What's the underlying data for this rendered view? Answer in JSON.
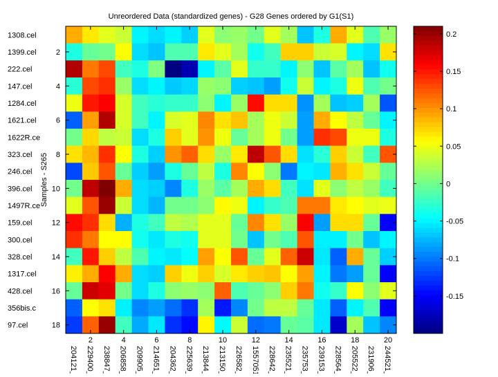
{
  "chart_data": {
    "type": "heatmap",
    "title": "Unreordered Data (standardized genes) - G28 Genes ordered by G1(S1)",
    "ylabel": "Samples - S265",
    "xlabel": "",
    "colormap": "jet",
    "clim": [
      -0.2,
      0.21
    ],
    "colorbar_ticks": [
      0.2,
      0.15,
      0.1,
      0.05,
      0,
      -0.05,
      -0.1,
      -0.15
    ],
    "colorbar_tick_labels": [
      "0.2",
      "0.15",
      "0.1",
      "0.05",
      "0",
      "-0.05",
      "-0.1",
      "-0.15"
    ],
    "x_ticks": [
      2,
      4,
      6,
      8,
      10,
      12,
      14,
      16,
      18,
      20
    ],
    "x_tick_labels": [
      "2",
      "4",
      "6",
      "8",
      "10",
      "12",
      "14",
      "16",
      "18",
      "20"
    ],
    "y_ticks": [
      2,
      4,
      6,
      8,
      10,
      12,
      14,
      16,
      18
    ],
    "y_tick_labels": [
      "2",
      "4",
      "6",
      "8",
      "10",
      "12",
      "14",
      "16",
      "18"
    ],
    "columns": [
      "204121_",
      "229400_",
      "238847_",
      "206858_",
      "209905_",
      "214651_",
      "204362_",
      "225639_",
      "213844_",
      "213150_",
      "226582_",
      "1557051",
      "228642_",
      "235521_",
      "235753_",
      "239153_",
      "228564_",
      "205522_",
      "231906_",
      "244521_"
    ],
    "rows": [
      "1308.cel",
      "1399.cel",
      "222.cel",
      "147.cel",
      "1284.cel",
      "1621.cel",
      "1622R.ce",
      "323.cel",
      "246.cel",
      "396.cel",
      "1497R.ce",
      "159.cel",
      "300.cel",
      "328.cel",
      "1317.cel",
      "428.cel",
      "356bis.c",
      "97.cel"
    ],
    "values": [
      [
        0.09,
        0.065,
        0.045,
        0.035,
        -0.05,
        -0.06,
        -0.05,
        -0.065,
        0.045,
        0.01,
        0.015,
        0.0,
        0.045,
        0.02,
        -0.07,
        -0.035,
        0.09,
        0.045,
        -0.015,
        0.015
      ],
      [
        -0.035,
        -0.005,
        0.0,
        0.056,
        -0.06,
        -0.07,
        -0.015,
        -0.015,
        0.065,
        0.045,
        0.02,
        -0.04,
        -0.02,
        0.075,
        0.075,
        0.035,
        0.04,
        -0.05,
        -0.06,
        0.068
      ],
      [
        0.19,
        0.11,
        0.13,
        -0.02,
        -0.035,
        0.005,
        -0.2,
        -0.18,
        -0.05,
        -0.01,
        0.045,
        -0.025,
        -0.025,
        -0.05,
        0.01,
        -0.07,
        -0.01,
        0.02,
        -0.07,
        -0.04
      ],
      [
        -0.03,
        0.13,
        0.14,
        0.015,
        -0.06,
        -0.05,
        -0.068,
        -0.062,
        0.015,
        0.01,
        -0.065,
        -0.07,
        -0.085,
        -0.04,
        0.035,
        -0.05,
        -0.035,
        0.05,
        -0.015,
        0.0
      ],
      [
        0.05,
        0.15,
        0.16,
        0.04,
        -0.02,
        -0.03,
        -0.025,
        -0.025,
        0.01,
        -0.05,
        0.015,
        0.155,
        0.07,
        0.07,
        -0.09,
        0.02,
        -0.07,
        -0.065,
        0.02,
        -0.115
      ],
      [
        -0.11,
        0.095,
        0.19,
        0.04,
        -0.02,
        -0.05,
        0.04,
        0.045,
        0.105,
        0.068,
        0.08,
        0.02,
        0.05,
        0.035,
        -0.085,
        0.09,
        0.056,
        0.03,
        -0.005,
        -0.05
      ],
      [
        0.0,
        0.072,
        0.03,
        0.035,
        -0.06,
        -0.035,
        0.075,
        0.045,
        0.1,
        0.05,
        -0.005,
        0.02,
        0.05,
        0.0,
        -0.085,
        0.14,
        0.13,
        0.05,
        0.05,
        -0.035
      ],
      [
        0.068,
        0.085,
        0.14,
        0.056,
        -0.035,
        -0.065,
        0.1,
        0.12,
        0.07,
        0.015,
        0.065,
        0.185,
        0.125,
        0.07,
        -0.058,
        -0.03,
        0.075,
        0.035,
        -0.02,
        0.125
      ],
      [
        -0.12,
        0.078,
        0.125,
        -0.005,
        -0.065,
        -0.085,
        -0.035,
        -0.005,
        0.03,
        -0.035,
        0.105,
        0.056,
        0.01,
        -0.1,
        -0.05,
        -0.055,
        0.088,
        0.068,
        0.035,
        -0.005
      ],
      [
        0.0,
        0.185,
        0.21,
        0.09,
        -0.06,
        -0.065,
        -0.095,
        -0.035,
        0.015,
        -0.01,
        0.02,
        0.09,
        0.07,
        -0.02,
        -0.058,
        0.045,
        0.01,
        0.03,
        0.015,
        -0.02
      ],
      [
        0.045,
        0.125,
        0.2,
        0.035,
        -0.06,
        -0.075,
        0.0,
        0.0,
        0.01,
        0.058,
        0.05,
        -0.05,
        -0.025,
        -0.015,
        0.11,
        0.11,
        0.065,
        0.056,
        0.045,
        0.048
      ],
      [
        0.155,
        0.14,
        0.07,
        -0.078,
        -0.035,
        -0.02,
        0.03,
        0.025,
        0.045,
        0.045,
        -0.005,
        0.105,
        0.068,
        0.015,
        0.16,
        -0.085,
        0.07,
        0.07,
        -0.005,
        -0.15
      ],
      [
        0.14,
        0.11,
        0.056,
        0.056,
        -0.04,
        -0.055,
        -0.035,
        -0.04,
        0.045,
        0.045,
        0.0,
        -0.07,
        0.0,
        -0.015,
        0.125,
        -0.052,
        -0.052,
        0.0,
        -0.07,
        -0.05
      ],
      [
        -0.02,
        0.15,
        0.075,
        0.03,
        -0.015,
        -0.05,
        -0.055,
        -0.045,
        0.095,
        0.056,
        0.125,
        -0.005,
        0.045,
        0.12,
        0.18,
        -0.055,
        -0.11,
        0.09,
        -0.005,
        -0.065
      ],
      [
        0.062,
        0.09,
        0.16,
        0.09,
        -0.06,
        -0.065,
        0.075,
        0.05,
        0.075,
        0.04,
        0.065,
        0.075,
        0.08,
        0.056,
        0.095,
        -0.05,
        -0.1,
        -0.085,
        -0.005,
        -0.15
      ],
      [
        -0.005,
        0.18,
        0.17,
        0.0,
        -0.06,
        -0.035,
        0.01,
        0.015,
        0.01,
        0.12,
        -0.015,
        -0.005,
        0.01,
        0.075,
        0.11,
        -0.04,
        -0.025,
        0.056,
        0.01,
        0.045
      ],
      [
        -0.11,
        0.056,
        0.068,
        -0.052,
        -0.095,
        -0.085,
        -0.105,
        -0.13,
        0.02,
        -0.14,
        -0.095,
        0.0,
        0.03,
        0.03,
        -0.005,
        -0.055,
        -0.11,
        -0.05,
        -0.015,
        -0.15
      ],
      [
        -0.125,
        0.12,
        0.2,
        -0.02,
        -0.08,
        -0.055,
        -0.13,
        -0.145,
        0.06,
        -0.048,
        0.035,
        -0.105,
        -0.1,
        -0.005,
        -0.01,
        -0.055,
        -0.17,
        0.02,
        -0.07,
        -0.095
      ]
    ]
  }
}
